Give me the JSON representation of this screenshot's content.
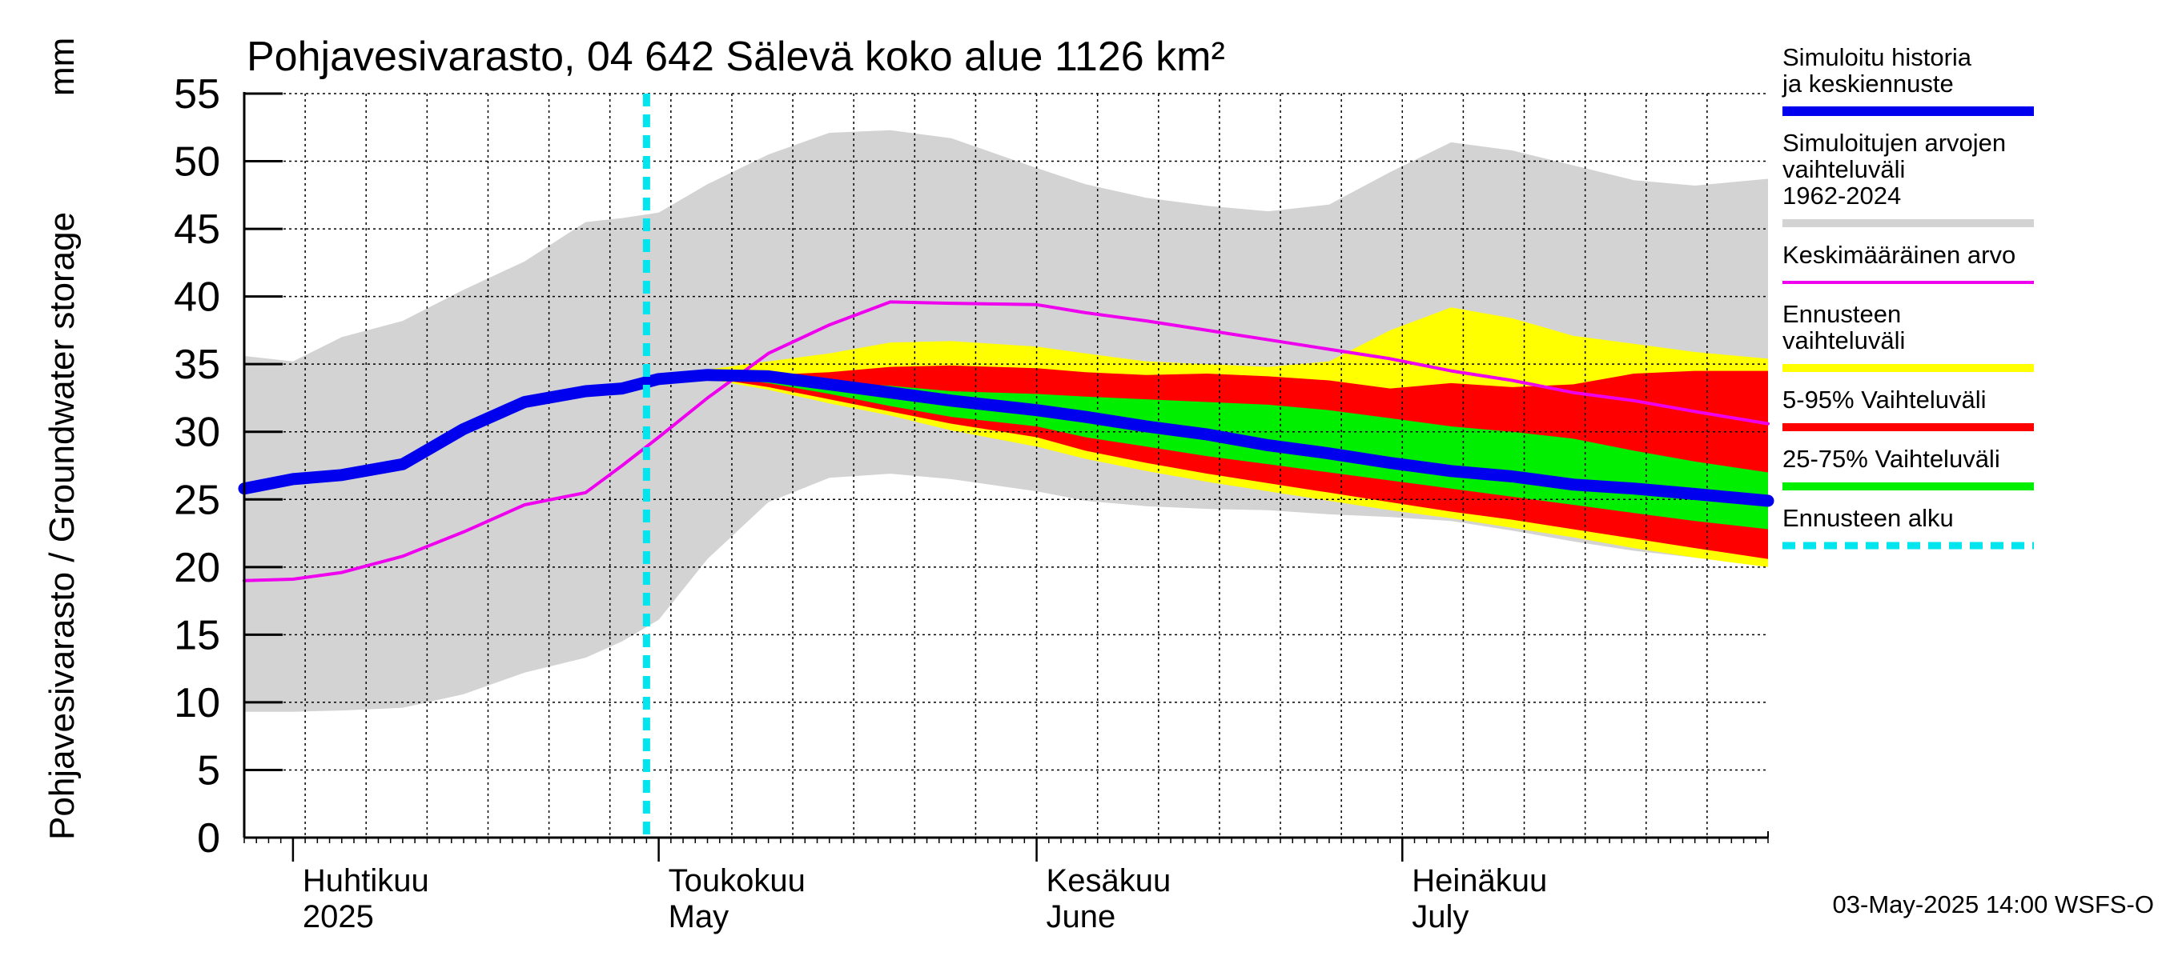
{
  "chart_data": {
    "type": "area",
    "title": "Pohjavesivarasto, 04 642 Sälevä koko alue 1126 km²",
    "ylabel": "Pohjavesivarasto / Groundwater storage",
    "yunit": "mm",
    "ylim": [
      0,
      55
    ],
    "yticks": [
      0,
      5,
      10,
      15,
      20,
      25,
      30,
      35,
      40,
      45,
      50,
      55
    ],
    "xlim": [
      "2025-03-28",
      "2025-07-31"
    ],
    "grid": true,
    "legend_position": "right",
    "x_month_labels": [
      {
        "date": "2025-04-01",
        "line1": "Huhtikuu",
        "line2": "2025"
      },
      {
        "date": "2025-05-01",
        "line1": "Toukokuu",
        "line2": "May"
      },
      {
        "date": "2025-06-01",
        "line1": "Kesäkuu",
        "line2": "June"
      },
      {
        "date": "2025-07-01",
        "line1": "Heinäkuu",
        "line2": "July"
      }
    ],
    "forecast_start": "2025-04-30",
    "footer": "03-May-2025 14:00 WSFS-O",
    "colors": {
      "sim_range": "#d3d3d3",
      "forecast_range": "#ffff00",
      "p5_95": "#ff0000",
      "p25_75": "#00ee00",
      "history": "#0000ee",
      "mean": "#ee00ee",
      "forecast_start": "#00e5ee"
    },
    "legend": [
      {
        "key": "history",
        "label": "Simuloitu historia ja keskiennuste",
        "style": "thick"
      },
      {
        "key": "sim_range",
        "label": "Simuloitujen arvojen vaihteluväli 1962-2024",
        "style": "band"
      },
      {
        "key": "mean",
        "label": "Keskimääräinen arvo",
        "style": "thin"
      },
      {
        "key": "forecast_range",
        "label": "Ennusteen vaihteluväli",
        "style": "band"
      },
      {
        "key": "p5_95",
        "label": "5-95% Vaihteluväli",
        "style": "band"
      },
      {
        "key": "p25_75",
        "label": "25-75% Vaihteluväli",
        "style": "band"
      },
      {
        "key": "forecast_start",
        "label": "Ennusteen alku",
        "style": "dashed"
      }
    ],
    "bands": {
      "sim_range": {
        "x": [
          "2025-03-28",
          "2025-04-01",
          "2025-04-05",
          "2025-04-10",
          "2025-04-15",
          "2025-04-20",
          "2025-04-25",
          "2025-04-28",
          "2025-05-01",
          "2025-05-05",
          "2025-05-10",
          "2025-05-15",
          "2025-05-20",
          "2025-05-25",
          "2025-06-01",
          "2025-06-05",
          "2025-06-10",
          "2025-06-15",
          "2025-06-20",
          "2025-06-25",
          "2025-06-30",
          "2025-07-05",
          "2025-07-10",
          "2025-07-15",
          "2025-07-20",
          "2025-07-25",
          "2025-07-31"
        ],
        "upper": [
          35.6,
          35.2,
          37,
          38.2,
          40.5,
          42.6,
          45.5,
          45.8,
          46.2,
          48.3,
          50.5,
          52.1,
          52.3,
          51.7,
          49.5,
          48.3,
          47.3,
          46.7,
          46.3,
          46.8,
          49.2,
          51.4,
          50.8,
          49.7,
          48.6,
          48.2,
          48.7
        ],
        "lower": [
          9.3,
          9.3,
          9.4,
          9.6,
          10.6,
          12.2,
          13.3,
          14.5,
          16.1,
          20.6,
          24.8,
          26.6,
          26.9,
          26.5,
          25.6,
          24.9,
          24.5,
          24.3,
          24.2,
          23.9,
          23.7,
          23.4,
          22.7,
          21.9,
          21.2,
          20.7,
          20.2
        ]
      },
      "forecast_range": {
        "x": [
          "2025-05-03",
          "2025-05-05",
          "2025-05-10",
          "2025-05-15",
          "2025-05-20",
          "2025-05-25",
          "2025-06-01",
          "2025-06-05",
          "2025-06-10",
          "2025-06-15",
          "2025-06-20",
          "2025-06-25",
          "2025-06-30",
          "2025-07-05",
          "2025-07-10",
          "2025-07-15",
          "2025-07-20",
          "2025-07-25",
          "2025-07-31"
        ],
        "upper": [
          34.3,
          34.6,
          35.2,
          35.8,
          36.6,
          36.7,
          36.3,
          35.8,
          35.2,
          35,
          34.8,
          35.2,
          37.5,
          39.2,
          38.4,
          37.1,
          36.5,
          35.9,
          35.4
        ],
        "lower": [
          34.2,
          33.9,
          33.1,
          32.1,
          31.2,
          30.1,
          28.9,
          28,
          27.1,
          26.3,
          25.6,
          24.9,
          24.2,
          23.6,
          22.9,
          22.2,
          21.4,
          20.7,
          20
        ]
      },
      "p5_95": {
        "x": [
          "2025-05-03",
          "2025-05-05",
          "2025-05-10",
          "2025-05-15",
          "2025-05-20",
          "2025-05-25",
          "2025-06-01",
          "2025-06-05",
          "2025-06-10",
          "2025-06-15",
          "2025-06-20",
          "2025-06-25",
          "2025-06-30",
          "2025-07-05",
          "2025-07-10",
          "2025-07-15",
          "2025-07-20",
          "2025-07-25",
          "2025-07-31"
        ],
        "upper": [
          34.3,
          34.3,
          34.2,
          34.4,
          34.8,
          34.9,
          34.7,
          34.4,
          34.2,
          34.3,
          34.1,
          33.8,
          33.2,
          33.6,
          33.3,
          33.5,
          34.3,
          34.5,
          34.5
        ],
        "lower": [
          34.2,
          34,
          33.3,
          32.4,
          31.5,
          30.6,
          29.6,
          28.6,
          27.7,
          26.9,
          26.2,
          25.5,
          24.8,
          24.1,
          23.5,
          22.8,
          22.1,
          21.4,
          20.6
        ]
      },
      "p25_75": {
        "x": [
          "2025-05-03",
          "2025-05-05",
          "2025-05-10",
          "2025-05-15",
          "2025-05-20",
          "2025-05-25",
          "2025-06-01",
          "2025-06-05",
          "2025-06-10",
          "2025-06-15",
          "2025-06-20",
          "2025-06-25",
          "2025-06-30",
          "2025-07-05",
          "2025-07-10",
          "2025-07-15",
          "2025-07-20",
          "2025-07-25",
          "2025-07-31"
        ],
        "upper": [
          34.3,
          34.2,
          34,
          33.7,
          33.4,
          33,
          32.8,
          32.6,
          32.4,
          32.2,
          32,
          31.6,
          31,
          30.4,
          30,
          29.5,
          28.6,
          27.8,
          27
        ],
        "lower": [
          34.2,
          34.1,
          33.6,
          32.8,
          31.9,
          31.1,
          30.4,
          29.6,
          28.9,
          28.2,
          27.6,
          27,
          26.4,
          25.8,
          25.2,
          24.6,
          24,
          23.4,
          22.8
        ]
      }
    },
    "series": [
      {
        "key": "history",
        "name": "Simuloitu historia ja keskiennuste",
        "x": [
          "2025-03-28",
          "2025-04-01",
          "2025-04-05",
          "2025-04-10",
          "2025-04-15",
          "2025-04-20",
          "2025-04-25",
          "2025-04-28",
          "2025-05-01",
          "2025-05-05",
          "2025-05-10",
          "2025-05-15",
          "2025-05-20",
          "2025-05-25",
          "2025-06-01",
          "2025-06-05",
          "2025-06-10",
          "2025-06-15",
          "2025-06-20",
          "2025-06-25",
          "2025-06-30",
          "2025-07-05",
          "2025-07-10",
          "2025-07-15",
          "2025-07-20",
          "2025-07-25",
          "2025-07-31"
        ],
        "values": [
          25.8,
          26.5,
          26.8,
          27.6,
          30.2,
          32.2,
          33.0,
          33.2,
          33.9,
          34.2,
          34.1,
          33.5,
          32.9,
          32.3,
          31.6,
          31.1,
          30.4,
          29.8,
          29.0,
          28.4,
          27.7,
          27.1,
          26.7,
          26.1,
          25.8,
          25.4,
          24.9
        ]
      },
      {
        "key": "mean",
        "name": "Keskimääräinen arvo",
        "x": [
          "2025-03-28",
          "2025-04-01",
          "2025-04-05",
          "2025-04-10",
          "2025-04-15",
          "2025-04-20",
          "2025-04-25",
          "2025-04-28",
          "2025-05-01",
          "2025-05-05",
          "2025-05-10",
          "2025-05-15",
          "2025-05-20",
          "2025-05-25",
          "2025-06-01",
          "2025-06-05",
          "2025-06-10",
          "2025-06-15",
          "2025-06-20",
          "2025-06-25",
          "2025-06-30",
          "2025-07-05",
          "2025-07-10",
          "2025-07-15",
          "2025-07-20",
          "2025-07-25",
          "2025-07-31"
        ],
        "values": [
          19.0,
          19.1,
          19.6,
          20.8,
          22.6,
          24.6,
          25.5,
          27.5,
          29.6,
          32.5,
          35.8,
          37.9,
          39.6,
          39.5,
          39.4,
          38.8,
          38.2,
          37.5,
          36.8,
          36.1,
          35.4,
          34.5,
          33.8,
          32.9,
          32.3,
          31.5,
          30.6
        ]
      }
    ]
  }
}
